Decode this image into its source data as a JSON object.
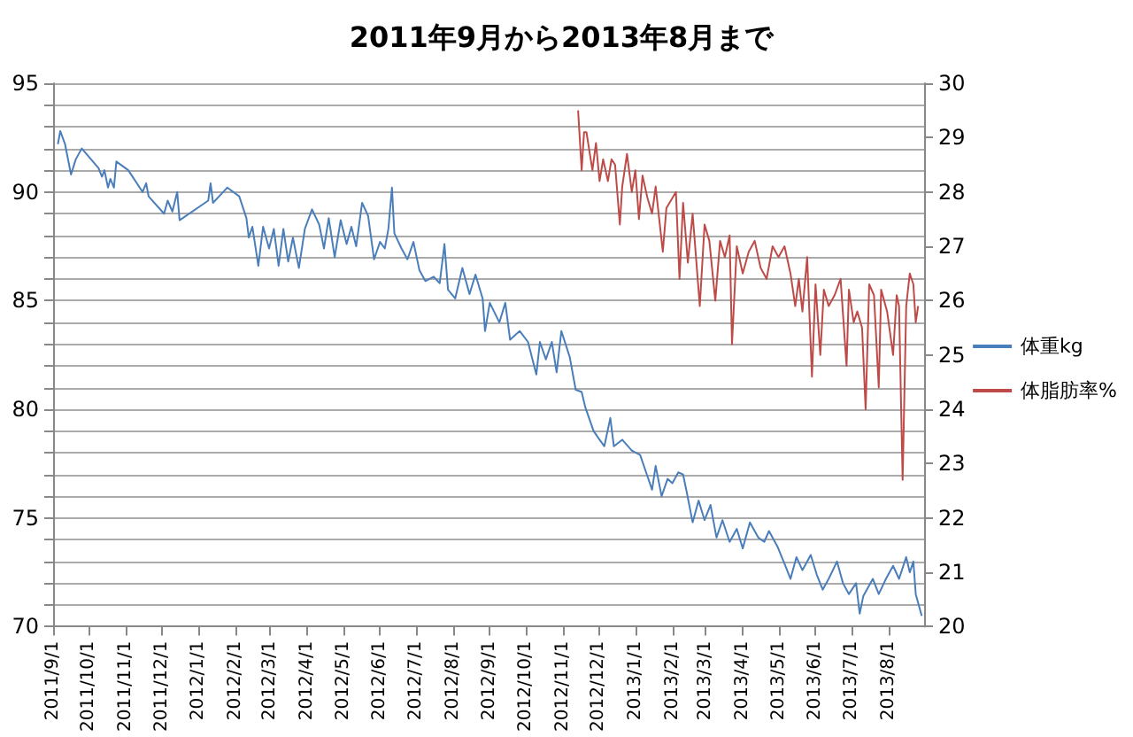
{
  "chart_data": {
    "type": "line",
    "title": "2011年9月から2013年8月まで",
    "grid": "y",
    "legend": "right",
    "marker": "none",
    "line_style": "solid",
    "xlim": [
      "2011-09-01",
      "2013-08-31"
    ],
    "xticks": [
      {
        "value": "2011-09-01",
        "label": "2011/9/1"
      },
      {
        "value": "2011-10-01",
        "label": "2011/10/1"
      },
      {
        "value": "2011-11-01",
        "label": "2011/11/1"
      },
      {
        "value": "2011-12-01",
        "label": "2011/12/1"
      },
      {
        "value": "2012-01-01",
        "label": "2012/1/1"
      },
      {
        "value": "2012-02-01",
        "label": "2012/2/1"
      },
      {
        "value": "2012-03-01",
        "label": "2012/3/1"
      },
      {
        "value": "2012-04-01",
        "label": "2012/4/1"
      },
      {
        "value": "2012-05-01",
        "label": "2012/5/1"
      },
      {
        "value": "2012-06-01",
        "label": "2012/6/1"
      },
      {
        "value": "2012-07-01",
        "label": "2012/7/1"
      },
      {
        "value": "2012-08-01",
        "label": "2012/8/1"
      },
      {
        "value": "2012-09-01",
        "label": "2012/9/1"
      },
      {
        "value": "2012-10-01",
        "label": "2012/10/1"
      },
      {
        "value": "2012-11-01",
        "label": "2012/11/1"
      },
      {
        "value": "2012-12-01",
        "label": "2012/12/1"
      },
      {
        "value": "2013-01-01",
        "label": "2013/1/1"
      },
      {
        "value": "2013-02-01",
        "label": "2013/2/1"
      },
      {
        "value": "2013-03-01",
        "label": "2013/3/1"
      },
      {
        "value": "2013-04-01",
        "label": "2013/4/1"
      },
      {
        "value": "2013-05-01",
        "label": "2013/5/1"
      },
      {
        "value": "2013-06-01",
        "label": "2013/6/1"
      },
      {
        "value": "2013-07-01",
        "label": "2013/7/1"
      },
      {
        "value": "2013-08-01",
        "label": "2013/8/1"
      }
    ],
    "ylim": [
      70,
      95
    ],
    "yticks": [
      70,
      {
        "value": 71,
        "label": null
      },
      {
        "value": 72,
        "label": null
      },
      {
        "value": 73,
        "label": null
      },
      {
        "value": 74,
        "label": null
      },
      75,
      {
        "value": 76,
        "label": null
      },
      {
        "value": 77,
        "label": null
      },
      {
        "value": 78,
        "label": null
      },
      {
        "value": 79,
        "label": null
      },
      80,
      {
        "value": 81,
        "label": null
      },
      {
        "value": 82,
        "label": null
      },
      {
        "value": 83,
        "label": null
      },
      {
        "value": 84,
        "label": null
      },
      85,
      {
        "value": 86,
        "label": null
      },
      {
        "value": 87,
        "label": null
      },
      {
        "value": 88,
        "label": null
      },
      {
        "value": 89,
        "label": null
      },
      90,
      {
        "value": 91,
        "label": null
      },
      {
        "value": 92,
        "label": null
      },
      {
        "value": 93,
        "label": null
      },
      {
        "value": 94,
        "label": null
      },
      95
    ],
    "y2lim": [
      20,
      30
    ],
    "y2ticks": [
      20,
      21,
      22,
      23,
      24,
      25,
      26,
      27,
      28,
      29,
      30
    ],
    "series": [
      {
        "name": "体重kg",
        "color": "#4a7ebb",
        "x": [
          "2011-09-05",
          "2011-09-07",
          "2011-09-11",
          "2011-09-16",
          "2011-09-20",
          "2011-09-25",
          "2011-10-09",
          "2011-10-12",
          "2011-10-14",
          "2011-10-17",
          "2011-10-19",
          "2011-10-22",
          "2011-10-24",
          "2011-11-03",
          "2011-11-15",
          "2011-11-18",
          "2011-11-20",
          "2011-12-03",
          "2011-12-06",
          "2011-12-10",
          "2011-12-14",
          "2011-12-16",
          "2012-01-09",
          "2012-01-11",
          "2012-01-13",
          "2012-01-25",
          "2012-02-04",
          "2012-02-10",
          "2012-02-12",
          "2012-02-15",
          "2012-02-20",
          "2012-02-24",
          "2012-02-29",
          "2012-03-04",
          "2012-03-08",
          "2012-03-12",
          "2012-03-16",
          "2012-03-20",
          "2012-03-25",
          "2012-03-30",
          "2012-04-05",
          "2012-04-11",
          "2012-04-15",
          "2012-04-19",
          "2012-04-24",
          "2012-04-29",
          "2012-05-04",
          "2012-05-08",
          "2012-05-12",
          "2012-05-17",
          "2012-05-22",
          "2012-05-27",
          "2012-06-01",
          "2012-06-05",
          "2012-06-08",
          "2012-06-11",
          "2012-06-13",
          "2012-06-19",
          "2012-06-24",
          "2012-06-29",
          "2012-07-04",
          "2012-07-09",
          "2012-07-16",
          "2012-07-21",
          "2012-07-25",
          "2012-07-28",
          "2012-08-03",
          "2012-08-09",
          "2012-08-15",
          "2012-08-20",
          "2012-08-26",
          "2012-08-28",
          "2012-09-01",
          "2012-09-09",
          "2012-09-14",
          "2012-09-18",
          "2012-09-26",
          "2012-10-03",
          "2012-10-10",
          "2012-10-13",
          "2012-10-18",
          "2012-10-23",
          "2012-10-27",
          "2012-10-31",
          "2012-11-07",
          "2012-11-12",
          "2012-11-17",
          "2012-11-20",
          "2012-11-27",
          "2012-12-02",
          "2012-12-06",
          "2012-12-11",
          "2012-12-14",
          "2012-12-21",
          "2012-12-29",
          "2013-01-05",
          "2013-01-10",
          "2013-01-15",
          "2013-01-18",
          "2013-01-23",
          "2013-01-28",
          "2013-02-01",
          "2013-02-06",
          "2013-02-10",
          "2013-02-13",
          "2013-02-18",
          "2013-02-23",
          "2013-02-28",
          "2013-03-05",
          "2013-03-10",
          "2013-03-15",
          "2013-03-21",
          "2013-03-27",
          "2013-04-01",
          "2013-04-07",
          "2013-04-14",
          "2013-04-19",
          "2013-04-23",
          "2013-04-30",
          "2013-05-06",
          "2013-05-11",
          "2013-05-16",
          "2013-05-21",
          "2013-05-28",
          "2013-06-02",
          "2013-06-07",
          "2013-06-12",
          "2013-06-19",
          "2013-06-24",
          "2013-06-29",
          "2013-07-05",
          "2013-07-08",
          "2013-07-11",
          "2013-07-19",
          "2013-07-24",
          "2013-07-30",
          "2013-08-05",
          "2013-08-10",
          "2013-08-16",
          "2013-08-19",
          "2013-08-22",
          "2013-08-24",
          "2013-08-29"
        ],
        "values": [
          92.2,
          92.8,
          92.2,
          90.8,
          91.5,
          92.0,
          91.1,
          90.7,
          91.0,
          90.2,
          90.6,
          90.2,
          91.4,
          91.0,
          90.0,
          90.4,
          89.8,
          89.0,
          89.6,
          89.1,
          90.0,
          88.7,
          89.6,
          90.4,
          89.5,
          90.2,
          89.8,
          88.8,
          87.9,
          88.4,
          86.6,
          88.4,
          87.4,
          88.3,
          86.6,
          88.3,
          86.8,
          87.9,
          86.5,
          88.3,
          89.2,
          88.5,
          87.4,
          88.8,
          87.0,
          88.7,
          87.6,
          88.4,
          87.5,
          89.5,
          88.9,
          86.9,
          87.7,
          87.4,
          88.3,
          90.2,
          88.1,
          87.4,
          86.9,
          87.7,
          86.4,
          85.9,
          86.1,
          85.8,
          87.6,
          85.5,
          85.1,
          86.5,
          85.3,
          86.2,
          85.1,
          83.6,
          84.9,
          84.0,
          84.9,
          83.2,
          83.6,
          83.1,
          81.6,
          83.1,
          82.3,
          83.1,
          81.7,
          83.6,
          82.4,
          80.9,
          80.8,
          80.1,
          79.0,
          78.6,
          78.3,
          79.6,
          78.3,
          78.6,
          78.1,
          77.9,
          77.1,
          76.3,
          77.4,
          76.0,
          76.8,
          76.6,
          77.1,
          77.0,
          76.2,
          74.8,
          75.8,
          74.9,
          75.6,
          74.1,
          74.9,
          73.9,
          74.5,
          73.6,
          74.8,
          74.1,
          73.9,
          74.4,
          73.7,
          72.9,
          72.2,
          73.2,
          72.6,
          73.3,
          72.4,
          71.7,
          72.2,
          73.0,
          72.0,
          71.5,
          72.0,
          70.6,
          71.4,
          72.2,
          71.5,
          72.2,
          72.8,
          72.2,
          73.2,
          72.5,
          73.0,
          71.5,
          70.5
        ]
      },
      {
        "name": "体脂肪率%",
        "color": "#be4b48",
        "axis": "y2",
        "x": [
          "2012-11-14",
          "2012-11-17",
          "2012-11-19",
          "2012-11-21",
          "2012-11-26",
          "2012-11-29",
          "2012-12-02",
          "2012-12-05",
          "2012-12-09",
          "2012-12-12",
          "2012-12-15",
          "2012-12-19",
          "2012-12-21",
          "2012-12-25",
          "2012-12-29",
          "2013-01-01",
          "2013-01-04",
          "2013-01-07",
          "2013-01-11",
          "2013-01-15",
          "2013-01-18",
          "2013-01-24",
          "2013-01-27",
          "2013-02-04",
          "2013-02-07",
          "2013-02-10",
          "2013-02-14",
          "2013-02-18",
          "2013-02-24",
          "2013-02-28",
          "2013-03-04",
          "2013-03-09",
          "2013-03-13",
          "2013-03-17",
          "2013-03-21",
          "2013-03-23",
          "2013-03-27",
          "2013-04-01",
          "2013-04-06",
          "2013-04-11",
          "2013-04-16",
          "2013-04-21",
          "2013-04-26",
          "2013-05-01",
          "2013-05-06",
          "2013-05-11",
          "2013-05-15",
          "2013-05-18",
          "2013-05-21",
          "2013-05-25",
          "2013-05-29",
          "2013-06-01",
          "2013-06-05",
          "2013-06-08",
          "2013-06-12",
          "2013-06-17",
          "2013-06-22",
          "2013-06-27",
          "2013-06-29",
          "2013-07-03",
          "2013-07-06",
          "2013-07-10",
          "2013-07-13",
          "2013-07-16",
          "2013-07-20",
          "2013-07-24",
          "2013-07-26",
          "2013-07-31",
          "2013-08-05",
          "2013-08-08",
          "2013-08-10",
          "2013-08-13",
          "2013-08-16",
          "2013-08-19",
          "2013-08-22",
          "2013-08-24",
          "2013-08-26"
        ],
        "values": [
          29.5,
          28.4,
          29.1,
          29.1,
          28.4,
          28.9,
          28.2,
          28.6,
          28.2,
          28.6,
          28.5,
          27.4,
          28.1,
          28.7,
          28.0,
          28.4,
          27.5,
          28.3,
          27.9,
          27.6,
          28.1,
          26.9,
          27.7,
          28.0,
          26.4,
          27.8,
          26.7,
          27.6,
          25.9,
          27.4,
          27.1,
          26.0,
          27.1,
          26.8,
          27.2,
          25.2,
          27.0,
          26.5,
          26.9,
          27.1,
          26.6,
          26.4,
          27.0,
          26.8,
          27.0,
          26.5,
          25.9,
          26.4,
          25.8,
          26.8,
          24.6,
          26.3,
          25.0,
          26.2,
          25.9,
          26.1,
          26.4,
          24.8,
          26.2,
          25.6,
          25.8,
          25.5,
          24.0,
          26.3,
          26.1,
          24.4,
          26.2,
          25.8,
          25.0,
          26.1,
          25.9,
          22.7,
          25.9,
          26.5,
          26.3,
          25.6,
          25.9
        ]
      }
    ]
  }
}
